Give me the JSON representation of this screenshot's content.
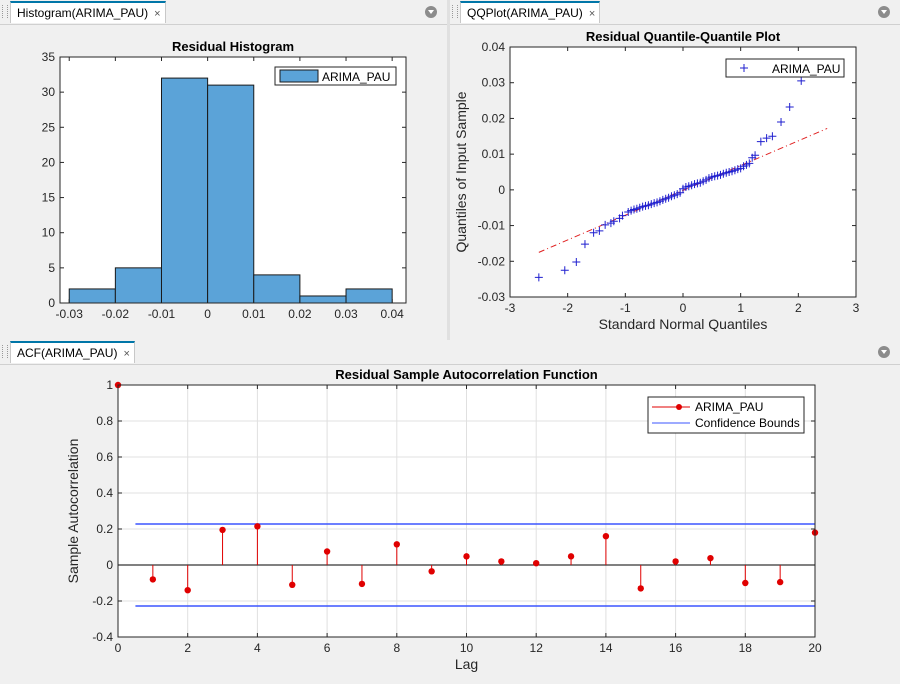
{
  "tabs": {
    "hist": "Histogram(ARIMA_PAU)",
    "qq": "QQPlot(ARIMA_PAU)",
    "acf": "ACF(ARIMA_PAU)",
    "close": "×"
  },
  "colors": {
    "bar": "#5ba3d8",
    "qq": "#1f1fcf",
    "ref": "#e02020",
    "stem": "#e00000",
    "bound": "#3b55ff"
  },
  "chart_data": [
    {
      "id": "histogram",
      "type": "bar",
      "title": "Residual Histogram",
      "xlabel": "",
      "ylabel": "",
      "bin_edges": [
        -0.03,
        -0.02,
        -0.01,
        0.0,
        0.01,
        0.02,
        0.03,
        0.04
      ],
      "values": [
        2,
        5,
        32,
        31,
        4,
        1,
        2
      ],
      "xlim": [
        -0.032,
        0.043
      ],
      "ylim": [
        0,
        35
      ],
      "xticks": [
        -0.03,
        -0.02,
        -0.01,
        0,
        0.01,
        0.02,
        0.03,
        0.04
      ],
      "xtick_labels": [
        "-0.03",
        "-0.02",
        "-0.01",
        "0",
        "0.01",
        "0.02",
        "0.03",
        "0.04"
      ],
      "yticks": [
        0,
        5,
        10,
        15,
        20,
        25,
        30,
        35
      ],
      "ytick_labels": [
        "0",
        "5",
        "10",
        "15",
        "20",
        "25",
        "30",
        "35"
      ],
      "legend": [
        "ARIMA_PAU"
      ],
      "legend_position": "top-right",
      "grid": false
    },
    {
      "id": "qqplot",
      "type": "scatter",
      "title": "Residual Quantile-Quantile Plot",
      "xlabel": "Standard Normal Quantiles",
      "ylabel": "Quantiles of Input Sample",
      "xlim": [
        -3,
        3
      ],
      "ylim": [
        -0.03,
        0.04
      ],
      "xticks": [
        -3,
        -2,
        -1,
        0,
        1,
        2,
        3
      ],
      "xtick_labels": [
        "-3",
        "-2",
        "-1",
        "0",
        "1",
        "2",
        "3"
      ],
      "yticks": [
        -0.03,
        -0.02,
        -0.01,
        0,
        0.01,
        0.02,
        0.03,
        0.04
      ],
      "ytick_labels": [
        "-0.03",
        "-0.02",
        "-0.01",
        "0",
        "0.01",
        "0.02",
        "0.03",
        "0.04"
      ],
      "series": [
        {
          "name": "ARIMA_PAU",
          "x": [
            -2.5,
            -2.05,
            -1.85,
            -1.7,
            -1.55,
            -1.45,
            -1.35,
            -1.25,
            -1.2,
            -1.1,
            -1.05,
            -0.95,
            -0.9,
            -0.85,
            -0.8,
            -0.75,
            -0.7,
            -0.65,
            -0.6,
            -0.55,
            -0.5,
            -0.45,
            -0.4,
            -0.35,
            -0.3,
            -0.25,
            -0.2,
            -0.15,
            -0.1,
            -0.05,
            0.0,
            0.05,
            0.1,
            0.15,
            0.2,
            0.25,
            0.3,
            0.35,
            0.4,
            0.45,
            0.5,
            0.55,
            0.6,
            0.65,
            0.7,
            0.75,
            0.8,
            0.85,
            0.9,
            0.95,
            1.0,
            1.05,
            1.1,
            1.15,
            1.2,
            1.25,
            1.35,
            1.45,
            1.55,
            1.7,
            1.85,
            2.05
          ],
          "y": [
            -0.0245,
            -0.0225,
            -0.0202,
            -0.0152,
            -0.012,
            -0.0115,
            -0.0098,
            -0.0093,
            -0.0088,
            -0.008,
            -0.0072,
            -0.0062,
            -0.0058,
            -0.0055,
            -0.0053,
            -0.005,
            -0.0047,
            -0.0045,
            -0.0043,
            -0.004,
            -0.0037,
            -0.0035,
            -0.0032,
            -0.0028,
            -0.0025,
            -0.0022,
            -0.0018,
            -0.0015,
            -0.0012,
            -0.0008,
            0.0003,
            0.0008,
            0.001,
            0.0013,
            0.0016,
            0.0018,
            0.002,
            0.0024,
            0.0028,
            0.0033,
            0.0036,
            0.0038,
            0.004,
            0.0042,
            0.0045,
            0.0048,
            0.005,
            0.0052,
            0.0055,
            0.0058,
            0.006,
            0.0066,
            0.007,
            0.0074,
            0.009,
            0.0097,
            0.0135,
            0.0145,
            0.015,
            0.019,
            0.0232,
            0.0305
          ]
        }
      ],
      "reference_line": {
        "x": [
          -2.5,
          2.5
        ],
        "y": [
          -0.0175,
          0.0172
        ]
      },
      "legend": [
        "ARIMA_PAU"
      ],
      "legend_position": "top-right",
      "grid": false
    },
    {
      "id": "acf",
      "type": "stem",
      "title": "Residual Sample Autocorrelation Function",
      "xlabel": "Lag",
      "ylabel": "Sample Autocorrelation",
      "xlim": [
        0,
        20
      ],
      "ylim": [
        -0.4,
        1
      ],
      "xticks": [
        0,
        2,
        4,
        6,
        8,
        10,
        12,
        14,
        16,
        18,
        20
      ],
      "xtick_labels": [
        "0",
        "2",
        "4",
        "6",
        "8",
        "10",
        "12",
        "14",
        "16",
        "18",
        "20"
      ],
      "yticks": [
        -0.4,
        -0.2,
        0,
        0.2,
        0.4,
        0.6,
        0.8,
        1
      ],
      "ytick_labels": [
        "-0.4",
        "-0.2",
        "0",
        "0.2",
        "0.4",
        "0.6",
        "0.8",
        "1"
      ],
      "series": [
        {
          "name": "ARIMA_PAU",
          "x": [
            0,
            1,
            2,
            3,
            4,
            5,
            6,
            7,
            8,
            9,
            10,
            11,
            12,
            13,
            14,
            15,
            16,
            17,
            18,
            19,
            20
          ],
          "values": [
            1.0,
            -0.08,
            -0.14,
            0.195,
            0.215,
            -0.11,
            0.075,
            -0.105,
            0.115,
            -0.035,
            0.048,
            0.02,
            0.01,
            0.048,
            0.16,
            -0.13,
            0.02,
            0.038,
            -0.1,
            -0.095,
            0.18
          ]
        },
        {
          "name": "Confidence Bounds",
          "upper": 0.228,
          "lower": -0.228,
          "x_range": [
            0.5,
            20
          ]
        }
      ],
      "legend": [
        "ARIMA_PAU",
        "Confidence Bounds"
      ],
      "legend_position": "top-right",
      "grid": true
    }
  ]
}
